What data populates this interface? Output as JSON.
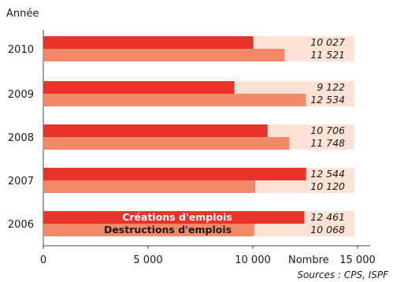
{
  "chart_data": {
    "type": "bar",
    "orientation": "horizontal",
    "title": "",
    "ylabel": "Année",
    "xlabel": "Nombre",
    "categories": [
      "2010",
      "2009",
      "2008",
      "2007",
      "2006"
    ],
    "series": [
      {
        "name": "Créations d'emplois",
        "color": "#e8322a",
        "values": [
          10027,
          9122,
          10706,
          12544,
          12461
        ],
        "labels": [
          "10 027",
          "9 122",
          "10 706",
          "12 544",
          "12 461"
        ]
      },
      {
        "name": "Destructions d'emplois",
        "color": "#f4896a",
        "values": [
          11521,
          12534,
          11748,
          10120,
          10068
        ],
        "labels": [
          "11 521",
          "12 534",
          "11 748",
          "10 120",
          "10 068"
        ]
      }
    ],
    "xlim": [
      0,
      15000
    ],
    "xticks": [
      0,
      5000,
      10000,
      15000
    ],
    "xtick_labels": [
      "0",
      "5 000",
      "10 000",
      "15 000"
    ],
    "grid": false,
    "legend_placement": "inside-bottom"
  },
  "source": "Sources : CPS, ISPF"
}
